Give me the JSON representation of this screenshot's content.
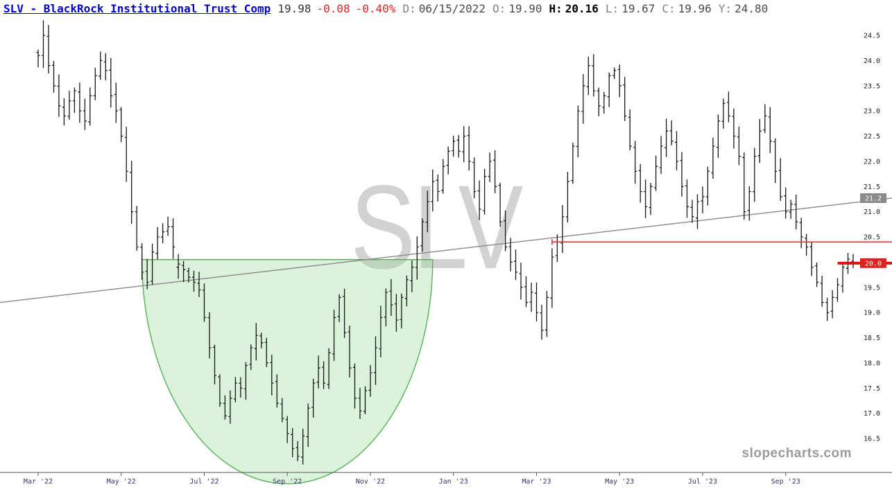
{
  "header": {
    "symbol_link": "SLV - BlackRock Institutional Trust Comp",
    "last": "19.98",
    "change": "-0.08",
    "change_pct": "-0.40%",
    "date_label": "D:",
    "date_value": "06/15/2022",
    "open_label": "O:",
    "open_value": "19.90",
    "high_label": "H:",
    "high_value": "20.16",
    "low_label": "L:",
    "low_value": "19.67",
    "close_label": "C:",
    "close_value": "19.96",
    "year_label": "Y:",
    "year_value": "24.80"
  },
  "branding": {
    "watermark": "SLV",
    "site": "slopecharts.com"
  },
  "colors": {
    "link": "#0000cc",
    "negative": "#e32222",
    "bar": "#161616",
    "trendline": "#8f8f8f",
    "level_line": "#e53131",
    "last_price_line": "#dd1111",
    "cup_fill": "rgba(150,222,150,0.35)",
    "cup_stroke": "#59b259",
    "axis_text": "#333366",
    "price_text": "#222222",
    "marker_gray": "#8a8a8a",
    "marker_red": "#dd2222"
  },
  "chart_data": {
    "type": "ohlc",
    "symbol": "SLV",
    "title": "SLV - BlackRock Institutional Trust Comp",
    "y_range_displayed": [
      16.5,
      24.5
    ],
    "y_ticks": [
      24.5,
      24.0,
      23.5,
      23.0,
      22.5,
      22.0,
      21.5,
      21.0,
      20.5,
      20.0,
      19.5,
      19.0,
      18.5,
      18.0,
      17.5,
      17.0,
      16.5
    ],
    "x_labels": [
      {
        "label": "Mar '22",
        "index": 0
      },
      {
        "label": "May '22",
        "index": 16
      },
      {
        "label": "Jul '22",
        "index": 32
      },
      {
        "label": "Sep '22",
        "index": 48
      },
      {
        "label": "Nov '22",
        "index": 64
      },
      {
        "label": "Jan '23",
        "index": 80
      },
      {
        "label": "Mar '23",
        "index": 96
      },
      {
        "label": "May '23",
        "index": 112
      },
      {
        "label": "Jul '23",
        "index": 128
      },
      {
        "label": "Sep '23",
        "index": 144
      }
    ],
    "closes": [
      24.1,
      24.5,
      23.9,
      23.5,
      23.1,
      22.9,
      23.2,
      23.4,
      23.0,
      22.8,
      23.3,
      23.7,
      24.0,
      23.8,
      23.3,
      23.0,
      22.5,
      21.8,
      21.0,
      20.3,
      19.8,
      19.6,
      20.2,
      20.5,
      20.6,
      20.7,
      20.3,
      19.96,
      19.85,
      19.7,
      19.6,
      19.45,
      18.9,
      18.3,
      17.75,
      17.2,
      16.95,
      17.3,
      17.6,
      17.5,
      17.95,
      18.3,
      18.55,
      18.4,
      18.0,
      17.6,
      17.2,
      16.9,
      16.6,
      16.3,
      16.15,
      16.55,
      17.1,
      17.6,
      17.9,
      17.6,
      18.2,
      18.9,
      19.3,
      18.6,
      17.9,
      17.3,
      17.05,
      17.45,
      17.8,
      18.3,
      18.9,
      19.4,
      19.15,
      18.85,
      19.3,
      19.65,
      19.9,
      20.3,
      20.8,
      21.2,
      21.6,
      21.4,
      21.9,
      22.2,
      22.4,
      22.2,
      22.5,
      22.0,
      21.4,
      21.05,
      21.7,
      22.0,
      21.5,
      20.8,
      20.3,
      20.0,
      19.8,
      19.5,
      19.2,
      19.4,
      19.0,
      18.65,
      19.3,
      20.1,
      20.4,
      20.9,
      21.6,
      22.3,
      23.0,
      23.5,
      23.9,
      23.4,
      23.1,
      23.3,
      23.7,
      23.8,
      23.5,
      22.9,
      22.3,
      21.8,
      21.4,
      21.1,
      21.5,
      21.9,
      22.3,
      22.6,
      22.4,
      22.0,
      21.5,
      21.1,
      20.9,
      21.2,
      21.3,
      21.8,
      22.3,
      22.8,
      23.15,
      22.9,
      22.5,
      22.1,
      21.0,
      21.4,
      22.1,
      22.6,
      22.9,
      22.4,
      21.8,
      21.3,
      21.0,
      21.15,
      20.8,
      20.5,
      20.3,
      19.9,
      19.6,
      19.2,
      19.0,
      19.3,
      19.55,
      19.9,
      20.06,
      19.98
    ],
    "special_bars": [
      {
        "index": 1,
        "o": 24.1,
        "h": 24.8,
        "l": 23.85,
        "c": 24.5
      },
      {
        "index": 27,
        "o": 19.9,
        "h": 20.16,
        "l": 19.67,
        "c": 19.96
      },
      {
        "index": 50,
        "o": 16.32,
        "h": 16.45,
        "l": 16.05,
        "c": 16.15
      },
      {
        "index": 157,
        "o": 20.02,
        "h": 20.16,
        "l": 19.88,
        "c": 19.98
      }
    ],
    "annotations": {
      "cup": {
        "start_index": 20,
        "end_index": 76,
        "top_price": 20.05,
        "bottom_price": 15.6
      },
      "trendline": {
        "price_left": 19.2,
        "price_right": 21.27,
        "marker_label": "21.2"
      },
      "resistance_line": {
        "price": 20.4,
        "start_index": 99
      },
      "last_price_line": {
        "price": 19.98,
        "start_index": 154,
        "marker_label": "20.0"
      }
    }
  }
}
